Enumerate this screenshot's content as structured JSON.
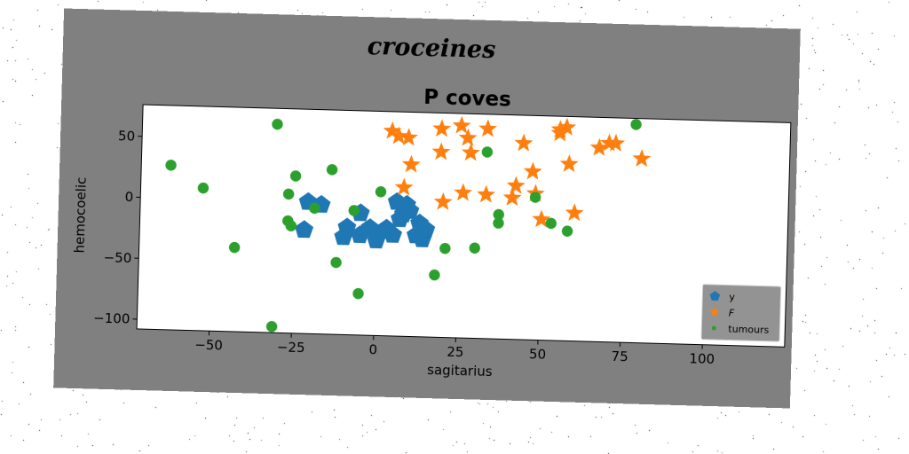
{
  "suptitle": "croceines",
  "chart_data": {
    "type": "scatter",
    "title": "P coves",
    "xlabel": "sagitarius",
    "ylabel": "hemocoelic",
    "xlim": [
      -72,
      125
    ],
    "ylim": [
      -108,
      76
    ],
    "xticks": [
      -50,
      -25,
      0,
      25,
      50,
      75,
      100
    ],
    "xtick_labels": [
      "−50",
      "−25",
      "0",
      "25",
      "50",
      "75",
      "100"
    ],
    "yticks": [
      -100,
      -50,
      0,
      50
    ],
    "ytick_labels": [
      "−100",
      "−50",
      "0",
      "50"
    ],
    "grid": false,
    "legend": "bottom-right",
    "series": [
      {
        "name": "y",
        "marker": "pentagon",
        "color": "#1f77b4",
        "x": [
          -21,
          -17,
          -22,
          -10,
          -5,
          -9,
          -5,
          0,
          5,
          7,
          3,
          0,
          6,
          9,
          10,
          13,
          14,
          -2,
          3,
          8,
          12,
          15
        ],
        "y": [
          0,
          -2,
          -23,
          -28,
          -26,
          -20,
          -8,
          -27,
          -25,
          -12,
          -20,
          -30,
          2,
          0,
          -5,
          -15,
          -28,
          -20,
          -22,
          -8,
          -25,
          -20
        ]
      },
      {
        "name": "F",
        "marker": "star",
        "color": "#ff7f0e",
        "x": [
          4,
          6,
          9,
          19,
          25,
          27,
          33,
          19,
          28,
          44,
          55,
          57,
          55,
          58,
          67,
          70,
          72,
          80,
          10,
          8,
          20,
          26,
          33,
          42,
          41,
          47,
          48,
          50,
          60
        ],
        "y": [
          60,
          56,
          55,
          63,
          66,
          56,
          64,
          44,
          44,
          53,
          65,
          67,
          62,
          37,
          51,
          55,
          55,
          43,
          33,
          14,
          3,
          11,
          10,
          18,
          8,
          30,
          12,
          -9,
          -3
        ],
        "legend_label": "$F$"
      },
      {
        "name": "tumours",
        "marker": "circle",
        "color": "#2ca02c",
        "x": [
          -31,
          -63,
          -53,
          -25,
          -14,
          -27,
          -27,
          -26,
          -19,
          -7,
          -12,
          -5,
          -43,
          -31,
          1,
          18,
          21,
          30,
          33,
          37,
          37,
          48,
          53,
          58,
          78
        ],
        "y": [
          63,
          27,
          9,
          21,
          27,
          6,
          -16,
          -20,
          -5,
          -6,
          -49,
          -74,
          -39,
          -103,
          10,
          -57,
          -35,
          -34,
          45,
          -6,
          -13,
          9,
          -12,
          -18,
          71
        ]
      }
    ]
  }
}
